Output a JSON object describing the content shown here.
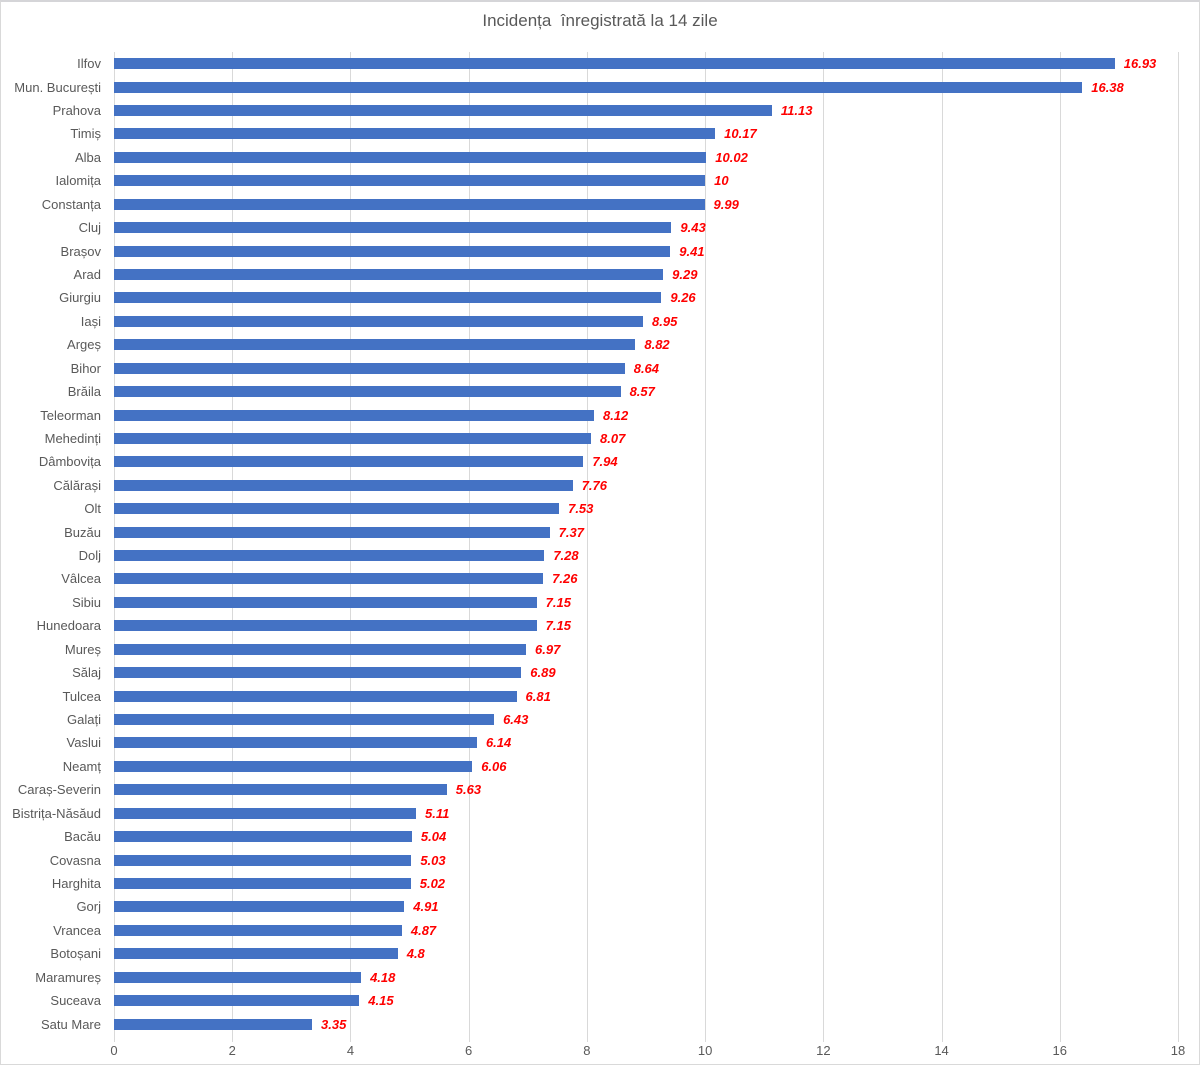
{
  "chart_data": {
    "type": "bar",
    "orientation": "horizontal",
    "title": "Incidența  înregistrată la 14 zile",
    "categories": [
      "Ilfov",
      "Mun. București",
      "Prahova",
      "Timiș",
      "Alba",
      "Ialomița",
      "Constanța",
      "Cluj",
      "Brașov",
      "Arad",
      "Giurgiu",
      "Iași",
      "Argeș",
      "Bihor",
      "Brăila",
      "Teleorman",
      "Mehedinți",
      "Dâmbovița",
      "Călărași",
      "Olt",
      "Buzău",
      "Dolj",
      "Vâlcea",
      "Sibiu",
      "Hunedoara",
      "Mureș",
      "Sălaj",
      "Tulcea",
      "Galați",
      "Vaslui",
      "Neamț",
      "Caraș-Severin",
      "Bistrița-Năsăud",
      "Bacău",
      "Covasna",
      "Harghita",
      "Gorj",
      "Vrancea",
      "Botoșani",
      "Maramureș",
      "Suceava",
      "Satu Mare"
    ],
    "values": [
      16.93,
      16.38,
      11.13,
      10.17,
      10.02,
      10,
      9.99,
      9.43,
      9.41,
      9.29,
      9.26,
      8.95,
      8.82,
      8.64,
      8.57,
      8.12,
      8.07,
      7.94,
      7.76,
      7.53,
      7.37,
      7.28,
      7.26,
      7.15,
      7.15,
      6.97,
      6.89,
      6.81,
      6.43,
      6.14,
      6.06,
      5.63,
      5.11,
      5.04,
      5.03,
      5.02,
      4.91,
      4.87,
      4.8,
      4.18,
      4.15,
      3.35
    ],
    "xlabel": "",
    "ylabel": "",
    "xlim": [
      0,
      18
    ],
    "x_ticks": [
      0,
      2,
      4,
      6,
      8,
      10,
      12,
      14,
      16,
      18
    ],
    "grid": true,
    "legend": false,
    "value_labels_shown": true,
    "colors": {
      "bar": "#4472C4",
      "value_label": "#FF0000",
      "text": "#595959",
      "gridline": "#D9D9D9",
      "border": "#D9D9D9",
      "background": "#FFFFFF"
    }
  }
}
